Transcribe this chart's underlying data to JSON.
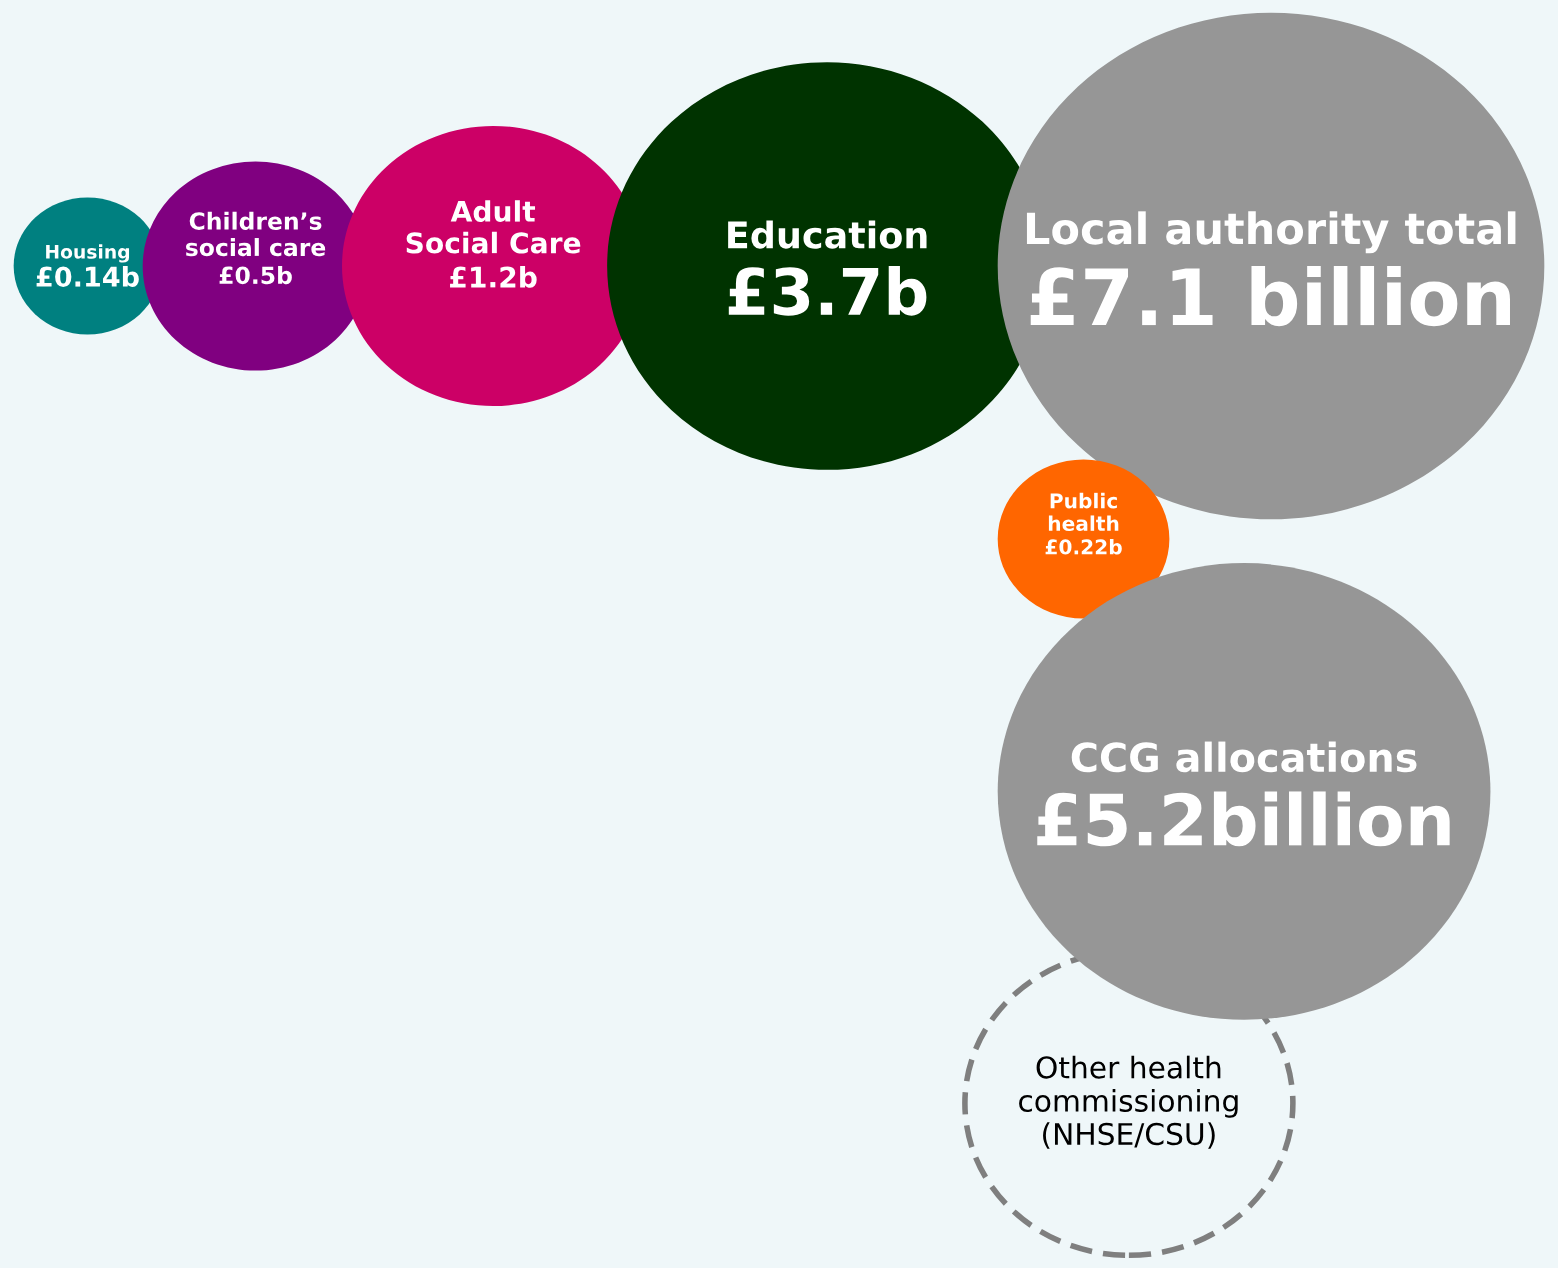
{
  "chart_data": {
    "type": "other",
    "categories": [
      "Housing",
      "Children’s\nsocial care",
      "Adult\nSocial Care",
      "Education",
      "Local authority total",
      "Public\nhealth",
      "CCG allocations",
      "Other health\ncommissioning\n(NHSE/CSU)"
    ],
    "values": [
      0.14,
      0.5,
      1.2,
      3.7,
      7.1,
      0.22,
      5.2,
      null
    ],
    "value_labels": [
      "£0.14b",
      "£0.5b",
      "£1.2b",
      "£3.7b",
      "£7.1 billion",
      "£0.22b",
      "£5.2billion",
      null
    ],
    "colors": [
      "#008080",
      "#800080",
      "#cc0066",
      "#003300",
      "#969696",
      "#ff6600",
      "#969696",
      null
    ]
  }
}
